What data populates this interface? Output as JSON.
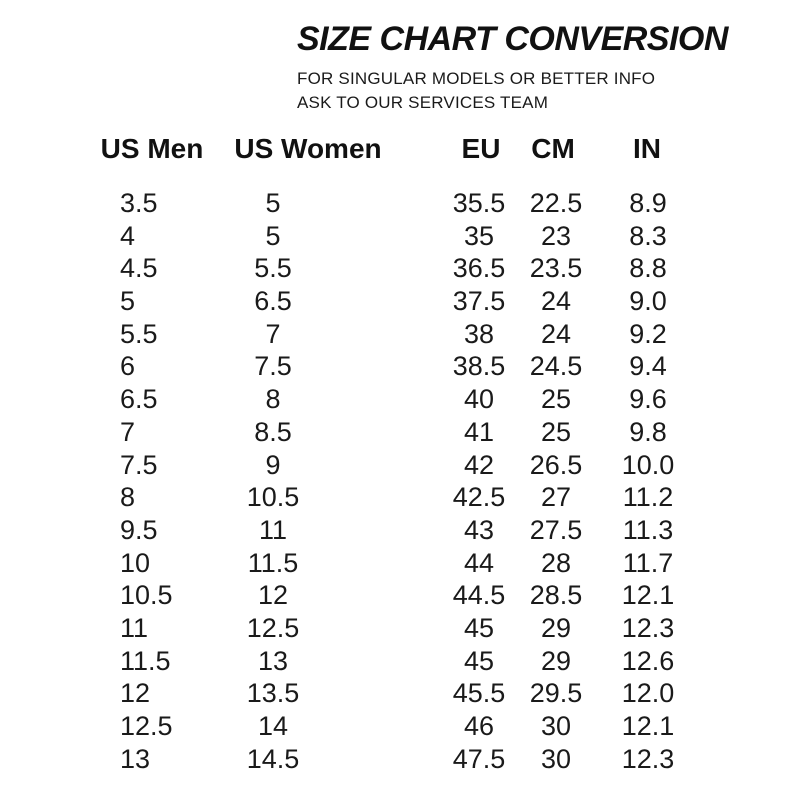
{
  "colors": {
    "background": "#ffffff",
    "text": "#1a1a1a",
    "title": "#111111"
  },
  "header": {
    "title": "SIZE CHART CONVERSION",
    "subtitle_line1": "FOR SINGULAR MODELS OR BETTER INFO",
    "subtitle_line2": "ASK TO OUR SERVICES TEAM"
  },
  "chart_data": {
    "type": "table",
    "title": "SIZE CHART CONVERSION",
    "subtitle": "FOR SINGULAR MODELS OR BETTER INFO ASK TO OUR SERVICES TEAM",
    "columns": [
      "US Men",
      "US Women",
      "EU",
      "CM",
      "IN"
    ],
    "rows": [
      [
        "3.5",
        "5",
        "35.5",
        "22.5",
        "8.9"
      ],
      [
        "4",
        "5",
        "35",
        "23",
        "8.3"
      ],
      [
        "4.5",
        "5.5",
        "36.5",
        "23.5",
        "8.8"
      ],
      [
        "5",
        "6.5",
        "37.5",
        "24",
        "9.0"
      ],
      [
        "5.5",
        "7",
        "38",
        "24",
        "9.2"
      ],
      [
        "6",
        "7.5",
        "38.5",
        "24.5",
        "9.4"
      ],
      [
        "6.5",
        "8",
        "40",
        "25",
        "9.6"
      ],
      [
        "7",
        "8.5",
        "41",
        "25",
        "9.8"
      ],
      [
        "7.5",
        "9",
        "42",
        "26.5",
        "10.0"
      ],
      [
        "8",
        "10.5",
        "42.5",
        "27",
        "11.2"
      ],
      [
        "9.5",
        "11",
        "43",
        "27.5",
        "11.3"
      ],
      [
        "10",
        "11.5",
        "44",
        "28",
        "11.7"
      ],
      [
        "10.5",
        "12",
        "44.5",
        "28.5",
        "12.1"
      ],
      [
        "11",
        "12.5",
        "45",
        "29",
        "12.3"
      ],
      [
        "11.5",
        "13",
        "45",
        "29",
        "12.6"
      ],
      [
        "12",
        "13.5",
        "45.5",
        "29.5",
        "12.0"
      ],
      [
        "12.5",
        "14",
        "46",
        "30",
        "12.1"
      ],
      [
        "13",
        "14.5",
        "47.5",
        "30",
        "12.3"
      ]
    ]
  }
}
